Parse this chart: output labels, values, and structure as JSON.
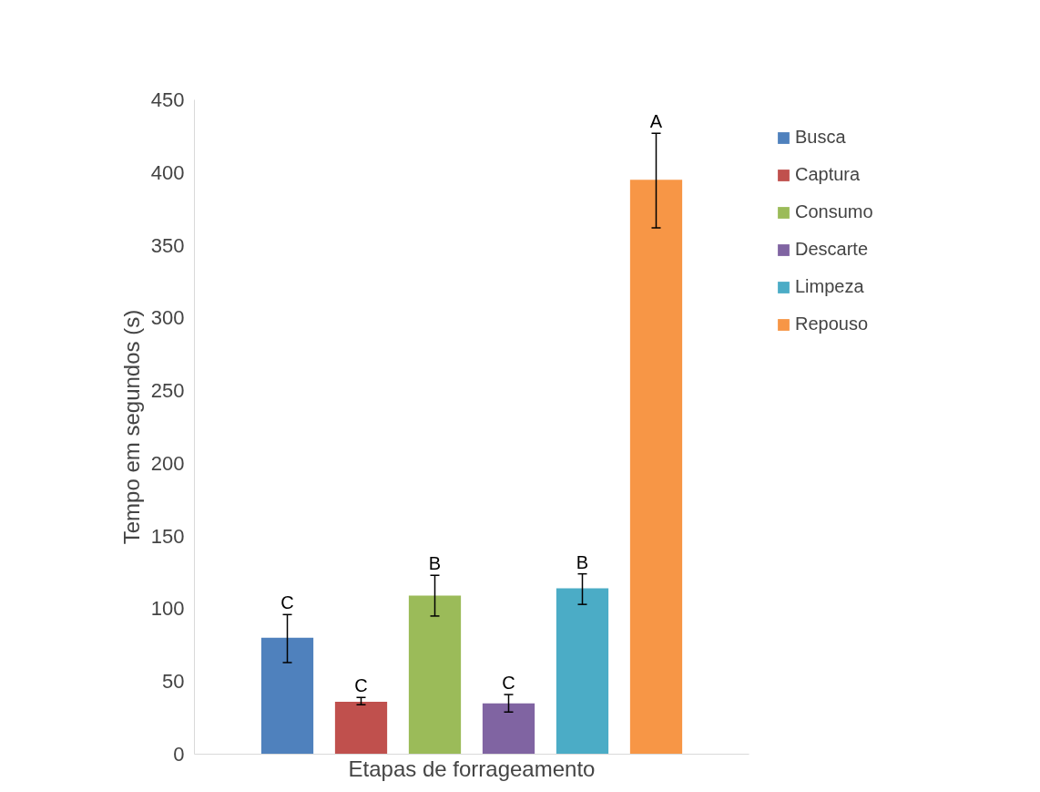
{
  "chart_data": {
    "type": "bar",
    "xlabel": "Etapas de forrageamento",
    "ylabel": "Tempo em segundos (s)",
    "categories": [
      null
    ],
    "series": [
      {
        "name": "Busca",
        "color": "#4f81bd",
        "values": [
          80
        ],
        "errors": [
          [
            63,
            96
          ]
        ],
        "value_labels": [
          "C"
        ]
      },
      {
        "name": "Captura",
        "color": "#c0504d",
        "values": [
          36
        ],
        "errors": [
          [
            34,
            39
          ]
        ],
        "value_labels": [
          "C"
        ]
      },
      {
        "name": "Consumo",
        "color": "#9bbb59",
        "values": [
          109
        ],
        "errors": [
          [
            95,
            123
          ]
        ],
        "value_labels": [
          "B"
        ]
      },
      {
        "name": "Descarte",
        "color": "#8064a2",
        "values": [
          35
        ],
        "errors": [
          [
            29,
            41
          ]
        ],
        "value_labels": [
          "C"
        ]
      },
      {
        "name": "Limpeza",
        "color": "#4bacc6",
        "values": [
          114
        ],
        "errors": [
          [
            103,
            124
          ]
        ],
        "value_labels": [
          "B"
        ]
      },
      {
        "name": "Repouso",
        "color": "#f79646",
        "values": [
          395
        ],
        "errors": [
          [
            362,
            427
          ]
        ],
        "value_labels": [
          "A"
        ]
      }
    ],
    "ylim": [
      0,
      450
    ],
    "yticks": [
      0,
      50,
      100,
      150,
      200,
      250,
      300,
      350,
      400,
      450
    ],
    "grid": false,
    "legend": "right"
  }
}
